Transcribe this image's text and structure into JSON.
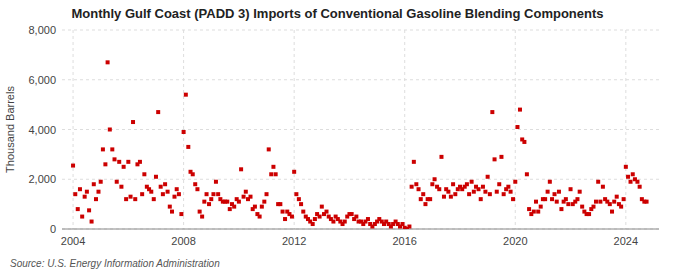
{
  "chart_data": {
    "type": "scatter",
    "title": "Monthly Gulf Coast (PADD 3) Imports of Conventional Gasoline Blending Components",
    "y_label": "Thousand Barrels",
    "source": "Source: U.S. Energy Information Administration",
    "color": "#cc0000",
    "marker": "square",
    "grid": true,
    "xlim": [
      2003.6,
      2025.2
    ],
    "xticks": [
      2004,
      2008,
      2012,
      2016,
      2020,
      2024
    ],
    "ylim": [
      0,
      8000
    ],
    "yticks": [
      0,
      {
        "value": 2000,
        "label": "2,000"
      },
      {
        "value": 4000,
        "label": "4,000"
      },
      {
        "value": 6000,
        "label": "6,000"
      },
      {
        "value": 8000,
        "label": "8,000"
      }
    ],
    "x": [
      2004.0,
      2004.08,
      2004.17,
      2004.25,
      2004.33,
      2004.42,
      2004.5,
      2004.58,
      2004.67,
      2004.75,
      2004.83,
      2004.92,
      2005.0,
      2005.08,
      2005.17,
      2005.25,
      2005.33,
      2005.42,
      2005.5,
      2005.58,
      2005.67,
      2005.75,
      2005.83,
      2005.92,
      2006.0,
      2006.08,
      2006.17,
      2006.25,
      2006.33,
      2006.42,
      2006.5,
      2006.58,
      2006.67,
      2006.75,
      2006.83,
      2006.92,
      2007.0,
      2007.08,
      2007.17,
      2007.25,
      2007.33,
      2007.42,
      2007.5,
      2007.58,
      2007.67,
      2007.75,
      2007.83,
      2007.92,
      2008.0,
      2008.08,
      2008.17,
      2008.25,
      2008.33,
      2008.42,
      2008.5,
      2008.58,
      2008.67,
      2008.75,
      2008.83,
      2008.92,
      2009.0,
      2009.08,
      2009.17,
      2009.25,
      2009.33,
      2009.42,
      2009.5,
      2009.58,
      2009.67,
      2009.75,
      2009.83,
      2009.92,
      2010.0,
      2010.08,
      2010.17,
      2010.25,
      2010.33,
      2010.42,
      2010.5,
      2010.58,
      2010.67,
      2010.75,
      2010.83,
      2010.92,
      2011.0,
      2011.08,
      2011.17,
      2011.25,
      2011.33,
      2011.42,
      2011.5,
      2011.58,
      2011.67,
      2011.75,
      2011.83,
      2011.92,
      2012.0,
      2012.08,
      2012.17,
      2012.25,
      2012.33,
      2012.42,
      2012.5,
      2012.58,
      2012.67,
      2012.75,
      2012.83,
      2012.92,
      2013.0,
      2013.08,
      2013.17,
      2013.25,
      2013.33,
      2013.42,
      2013.5,
      2013.58,
      2013.67,
      2013.75,
      2013.83,
      2013.92,
      2014.0,
      2014.08,
      2014.17,
      2014.25,
      2014.33,
      2014.42,
      2014.5,
      2014.58,
      2014.67,
      2014.75,
      2014.83,
      2014.92,
      2015.0,
      2015.08,
      2015.17,
      2015.25,
      2015.33,
      2015.42,
      2015.5,
      2015.58,
      2015.67,
      2015.75,
      2015.83,
      2015.92,
      2016.0,
      2016.08,
      2016.17,
      2016.25,
      2016.33,
      2016.42,
      2016.5,
      2016.58,
      2016.67,
      2016.75,
      2016.83,
      2016.92,
      2017.0,
      2017.08,
      2017.17,
      2017.25,
      2017.33,
      2017.42,
      2017.5,
      2017.58,
      2017.67,
      2017.75,
      2017.83,
      2017.92,
      2018.0,
      2018.08,
      2018.17,
      2018.25,
      2018.33,
      2018.42,
      2018.5,
      2018.58,
      2018.67,
      2018.75,
      2018.83,
      2018.92,
      2019.0,
      2019.08,
      2019.17,
      2019.25,
      2019.33,
      2019.42,
      2019.5,
      2019.58,
      2019.67,
      2019.75,
      2019.83,
      2019.92,
      2020.0,
      2020.08,
      2020.17,
      2020.25,
      2020.33,
      2020.42,
      2020.5,
      2020.58,
      2020.67,
      2020.75,
      2020.83,
      2020.92,
      2021.0,
      2021.08,
      2021.17,
      2021.25,
      2021.33,
      2021.42,
      2021.5,
      2021.58,
      2021.67,
      2021.75,
      2021.83,
      2021.92,
      2022.0,
      2022.08,
      2022.17,
      2022.25,
      2022.33,
      2022.42,
      2022.5,
      2022.58,
      2022.67,
      2022.75,
      2022.83,
      2022.92,
      2023.0,
      2023.08,
      2023.17,
      2023.25,
      2023.33,
      2023.42,
      2023.5,
      2023.58,
      2023.67,
      2023.75,
      2023.83,
      2023.92,
      2024.0,
      2024.08,
      2024.17,
      2024.25,
      2024.33,
      2024.42,
      2024.5,
      2024.58,
      2024.67,
      2024.75
    ],
    "values": [
      2550,
      1400,
      800,
      1600,
      500,
      1300,
      1500,
      750,
      300,
      1800,
      1200,
      1500,
      1900,
      3200,
      2600,
      6700,
      4000,
      3200,
      2800,
      1900,
      2700,
      1700,
      2500,
      1200,
      2700,
      1300,
      4300,
      1200,
      2600,
      2700,
      1400,
      2200,
      1700,
      1600,
      1500,
      1200,
      2100,
      4700,
      1700,
      1400,
      1800,
      1500,
      900,
      700,
      1300,
      1600,
      1400,
      600,
      3900,
      5400,
      3300,
      2300,
      2200,
      1800,
      1600,
      700,
      500,
      1100,
      1400,
      1000,
      1200,
      1400,
      1900,
      1400,
      1200,
      1100,
      1100,
      1100,
      800,
      1000,
      900,
      1200,
      1100,
      2400,
      1300,
      1500,
      1200,
      1300,
      800,
      900,
      600,
      500,
      900,
      1100,
      1400,
      3200,
      2200,
      2500,
      2200,
      1000,
      1000,
      700,
      400,
      700,
      600,
      500,
      2300,
      1400,
      1200,
      1000,
      700,
      500,
      400,
      300,
      200,
      400,
      600,
      500,
      900,
      600,
      700,
      500,
      400,
      300,
      500,
      400,
      300,
      200,
      300,
      500,
      600,
      600,
      400,
      500,
      300,
      300,
      200,
      300,
      400,
      200,
      100,
      200,
      300,
      400,
      300,
      200,
      300,
      200,
      100,
      200,
      300,
      200,
      100,
      200,
      50,
      0,
      100,
      1700,
      2700,
      1800,
      1600,
      1200,
      1400,
      1000,
      1200,
      1200,
      1800,
      2000,
      1700,
      1600,
      2900,
      1300,
      1600,
      1500,
      1300,
      1800,
      1400,
      1600,
      1700,
      1600,
      1700,
      1800,
      1400,
      1900,
      1500,
      1700,
      1600,
      1200,
      1700,
      1500,
      2100,
      1400,
      4700,
      2800,
      1500,
      1800,
      2900,
      1400,
      1600,
      1700,
      1500,
      1200,
      1900,
      4100,
      4800,
      3600,
      3500,
      2200,
      800,
      600,
      700,
      1100,
      700,
      900,
      1200,
      1200,
      1500,
      1900,
      1200,
      1400,
      1100,
      1500,
      800,
      1100,
      1200,
      1000,
      1600,
      1000,
      1100,
      1200,
      1500,
      900,
      700,
      600,
      600,
      800,
      900,
      1100,
      1900,
      1100,
      1700,
      1200,
      1100,
      1000,
      700,
      1100,
      1300,
      1000,
      900,
      1200,
      2500,
      2100,
      1900,
      2200,
      2000,
      1900,
      1700,
      1200,
      1100,
      1100
    ]
  }
}
